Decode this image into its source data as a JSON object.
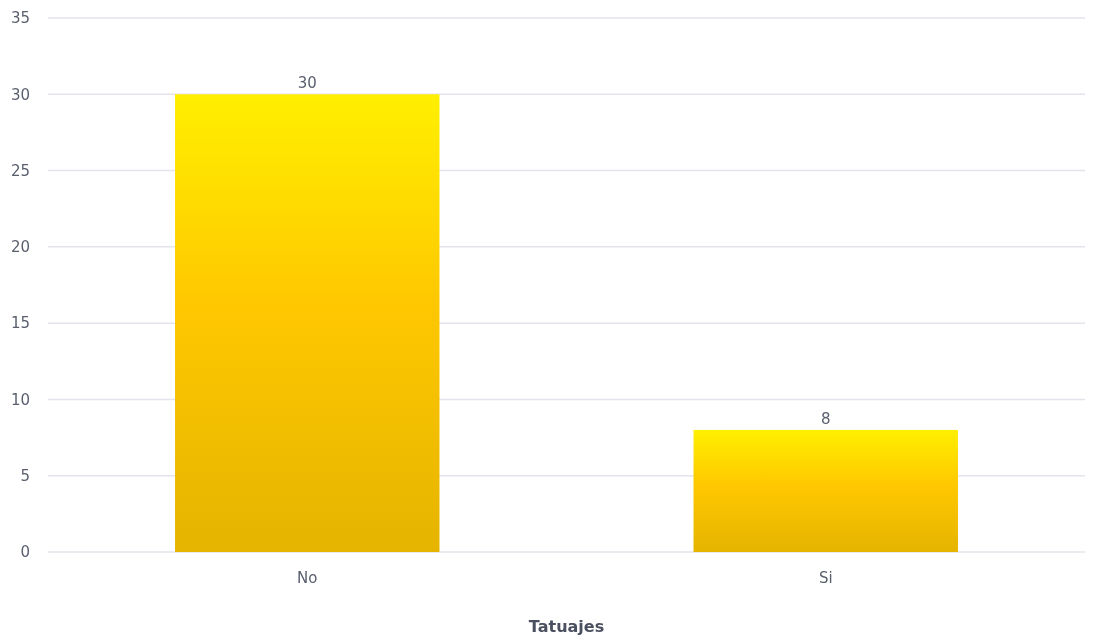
{
  "chart_data": {
    "type": "bar",
    "xlabel": "Tatuajes",
    "categories": [
      "No",
      "Si"
    ],
    "values": [
      30,
      8
    ],
    "color": "#ffc800",
    "ylim": [
      0,
      35
    ],
    "yticks": [
      0,
      5,
      10,
      15,
      20,
      25,
      30,
      35
    ],
    "grid": "y",
    "data_labels": true
  }
}
